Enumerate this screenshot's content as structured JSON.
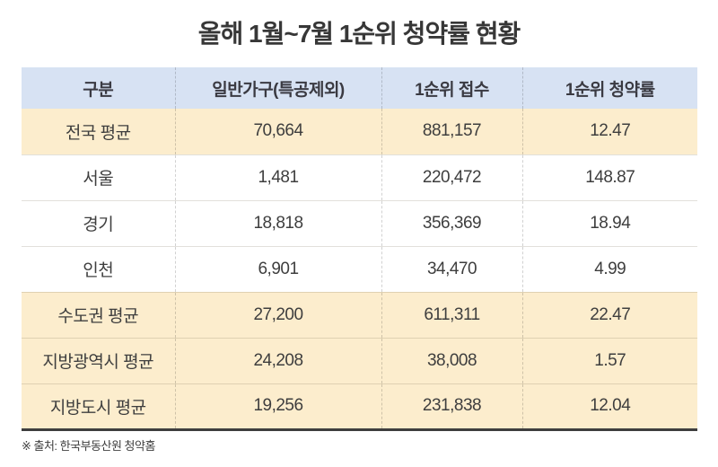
{
  "title": "올해 1월~7월 1순위 청약률 현황",
  "colors": {
    "header_bg": "#d7e2f3",
    "highlight_bg": "#fcedcd",
    "plain_bg": "#ffffff",
    "bottom_border": "#3e3e3e",
    "text": "#3e3e3e"
  },
  "table": {
    "headers": [
      "구분",
      "일반가구(특공제외)",
      "1순위 접수",
      "1순위 청약률"
    ],
    "rows": [
      {
        "highlighted": true,
        "cells": [
          "전국 평균",
          "70,664",
          "881,157",
          "12.47"
        ]
      },
      {
        "highlighted": false,
        "cells": [
          "서울",
          "1,481",
          "220,472",
          "148.87"
        ]
      },
      {
        "highlighted": false,
        "cells": [
          "경기",
          "18,818",
          "356,369",
          "18.94"
        ]
      },
      {
        "highlighted": false,
        "cells": [
          "인천",
          "6,901",
          "34,470",
          "4.99"
        ]
      },
      {
        "highlighted": true,
        "cells": [
          "수도권 평균",
          "27,200",
          "611,311",
          "22.47"
        ]
      },
      {
        "highlighted": true,
        "cells": [
          "지방광역시 평균",
          "24,208",
          "38,008",
          "1.57"
        ]
      },
      {
        "highlighted": true,
        "cells": [
          "지방도시 평균",
          "19,256",
          "231,838",
          "12.04"
        ]
      }
    ]
  },
  "footer": {
    "source": "※ 출처: 한국부동산원 청약홈"
  },
  "chart_data": {
    "type": "table",
    "title": "올해 1월~7월 1순위 청약률 현황",
    "columns": [
      "구분",
      "일반가구(특공제외)",
      "1순위 접수",
      "1순위 청약률"
    ],
    "rows": [
      {
        "구분": "전국 평균",
        "일반가구_특공제외": 70664,
        "순위1_접수": 881157,
        "순위1_청약률": 12.47
      },
      {
        "구분": "서울",
        "일반가구_특공제외": 1481,
        "순위1_접수": 220472,
        "순위1_청약률": 148.87
      },
      {
        "구분": "경기",
        "일반가구_특공제외": 18818,
        "순위1_접수": 356369,
        "순위1_청약률": 18.94
      },
      {
        "구분": "인천",
        "일반가구_특공제외": 6901,
        "순위1_접수": 34470,
        "순위1_청약률": 4.99
      },
      {
        "구분": "수도권 평균",
        "일반가구_특공제외": 27200,
        "순위1_접수": 611311,
        "순위1_청약률": 22.47
      },
      {
        "구분": "지방광역시 평균",
        "일반가구_특공제외": 24208,
        "순위1_접수": 38008,
        "순위1_청약률": 1.57
      },
      {
        "구분": "지방도시 평균",
        "일반가구_특공제외": 19256,
        "순위1_접수": 231838,
        "순위1_청약률": 12.04
      }
    ],
    "highlighted_rows": [
      "전국 평균",
      "수도권 평균",
      "지방광역시 평균",
      "지방도시 평균"
    ],
    "source": "한국부동산원 청약홈"
  }
}
